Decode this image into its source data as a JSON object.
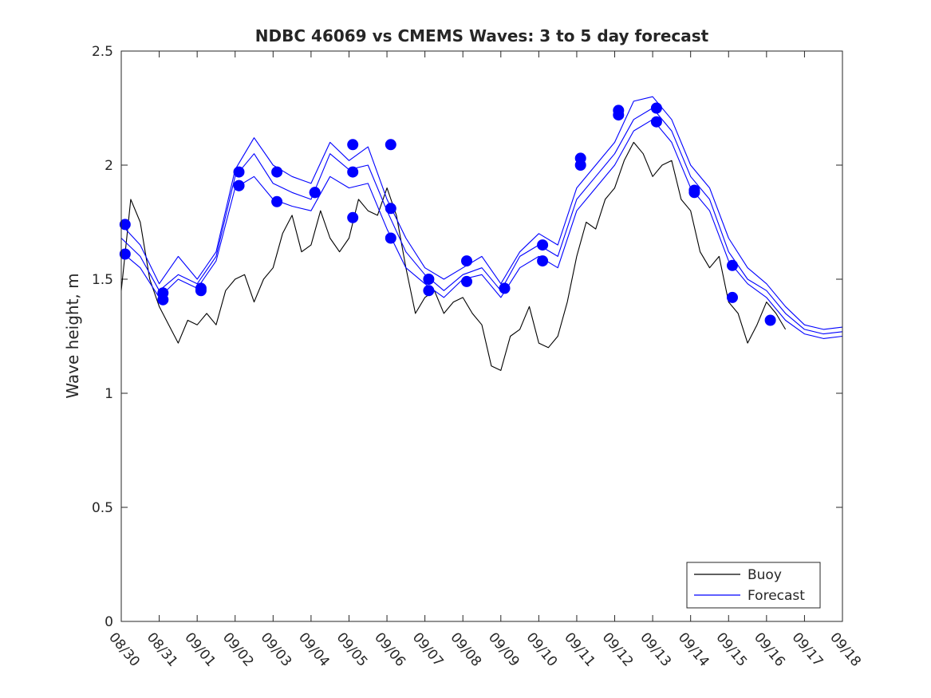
{
  "chart_data": {
    "type": "line",
    "title": "NDBC 46069 vs CMEMS Waves: 3 to 5 day forecast",
    "xlabel": "",
    "ylabel": "Wave height, m",
    "xlim": [
      0,
      19
    ],
    "ylim": [
      0,
      2.5
    ],
    "x_tick_values": [
      0,
      1,
      2,
      3,
      4,
      5,
      6,
      7,
      8,
      9,
      10,
      11,
      12,
      13,
      14,
      15,
      16,
      17,
      18,
      19
    ],
    "x_tick_labels": [
      "08/30",
      "08/31",
      "09/01",
      "09/02",
      "09/03",
      "09/04",
      "09/05",
      "09/06",
      "09/07",
      "09/08",
      "09/09",
      "09/10",
      "09/11",
      "09/12",
      "09/13",
      "09/14",
      "09/15",
      "09/16",
      "09/17",
      "09/18"
    ],
    "y_ticks": [
      0,
      0.5,
      1,
      1.5,
      2,
      2.5
    ],
    "y_tick_labels": [
      "0",
      "0.5",
      "1",
      "1.5",
      "2",
      "2.5"
    ],
    "legend": {
      "position": "bottom-right",
      "entries": [
        "Buoy",
        "Forecast"
      ]
    },
    "colors": {
      "buoy": "#000000",
      "forecast": "#0000ff"
    },
    "series": [
      {
        "name": "Buoy",
        "x": [
          0,
          0.25,
          0.5,
          0.75,
          1,
          1.25,
          1.5,
          1.75,
          2,
          2.25,
          2.5,
          2.75,
          3,
          3.25,
          3.5,
          3.75,
          4,
          4.25,
          4.5,
          4.75,
          5,
          5.25,
          5.5,
          5.75,
          6,
          6.25,
          6.5,
          6.75,
          7,
          7.25,
          7.5,
          7.75,
          8,
          8.25,
          8.5,
          8.75,
          9,
          9.25,
          9.5,
          9.75,
          10,
          10.25,
          10.5,
          10.75,
          11,
          11.25,
          11.5,
          11.75,
          12,
          12.25,
          12.5,
          12.75,
          13,
          13.25,
          13.5,
          13.75,
          14,
          14.25,
          14.5,
          14.75,
          15,
          15.25,
          15.5,
          15.75,
          16,
          16.25,
          16.5,
          16.75,
          17,
          17.25,
          17.5
        ],
        "values": [
          1.45,
          1.85,
          1.75,
          1.5,
          1.38,
          1.3,
          1.22,
          1.32,
          1.3,
          1.35,
          1.3,
          1.45,
          1.5,
          1.52,
          1.4,
          1.5,
          1.55,
          1.7,
          1.78,
          1.62,
          1.65,
          1.8,
          1.68,
          1.62,
          1.68,
          1.85,
          1.8,
          1.78,
          1.9,
          1.78,
          1.55,
          1.35,
          1.42,
          1.45,
          1.35,
          1.4,
          1.42,
          1.35,
          1.3,
          1.12,
          1.1,
          1.25,
          1.28,
          1.38,
          1.22,
          1.2,
          1.25,
          1.4,
          1.6,
          1.75,
          1.72,
          1.85,
          1.9,
          2.02,
          2.1,
          2.05,
          1.95,
          2.0,
          2.02,
          1.85,
          1.8,
          1.62,
          1.55,
          1.6,
          1.4,
          1.35,
          1.22,
          1.3,
          1.4,
          1.35,
          1.28
        ]
      },
      {
        "name": "Forecast",
        "x": [
          0,
          0.5,
          1,
          1.5,
          2,
          2.5,
          3,
          3.5,
          4,
          4.5,
          5,
          5.5,
          6,
          6.5,
          7,
          7.5,
          8,
          8.5,
          9,
          9.5,
          10,
          10.5,
          11,
          11.5,
          12,
          12.5,
          13,
          13.5,
          14,
          14.5,
          15,
          15.5,
          16,
          16.5,
          17,
          17.5,
          18,
          18.5,
          19
        ],
        "values": [
          1.68,
          1.6,
          1.45,
          1.52,
          1.48,
          1.6,
          1.95,
          2.05,
          1.92,
          1.88,
          1.85,
          2.05,
          1.98,
          2.0,
          1.8,
          1.62,
          1.52,
          1.45,
          1.52,
          1.55,
          1.45,
          1.6,
          1.65,
          1.6,
          1.85,
          1.95,
          2.05,
          2.2,
          2.25,
          2.15,
          1.95,
          1.85,
          1.62,
          1.5,
          1.45,
          1.35,
          1.28,
          1.26,
          1.27
        ]
      },
      {
        "name": "Forecast",
        "x": [
          0,
          0.5,
          1,
          1.5,
          2,
          2.5,
          3,
          3.5,
          4,
          4.5,
          5,
          5.5,
          6,
          6.5,
          7,
          7.5,
          8,
          8.5,
          9,
          9.5,
          10,
          10.5,
          11,
          11.5,
          12,
          12.5,
          13,
          13.5,
          14,
          14.5,
          15,
          15.5,
          16,
          16.5,
          17,
          17.5,
          18,
          18.5,
          19
        ],
        "values": [
          1.62,
          1.55,
          1.42,
          1.5,
          1.46,
          1.58,
          1.9,
          1.95,
          1.85,
          1.82,
          1.8,
          1.95,
          1.9,
          1.92,
          1.72,
          1.55,
          1.48,
          1.42,
          1.5,
          1.52,
          1.42,
          1.55,
          1.6,
          1.55,
          1.8,
          1.9,
          2.0,
          2.15,
          2.2,
          2.1,
          1.9,
          1.8,
          1.58,
          1.48,
          1.42,
          1.32,
          1.26,
          1.24,
          1.25
        ]
      },
      {
        "name": "Forecast",
        "x": [
          0,
          0.5,
          1,
          1.5,
          2,
          2.5,
          3,
          3.5,
          4,
          4.5,
          5,
          5.5,
          6,
          6.5,
          7,
          7.5,
          8,
          8.5,
          9,
          9.5,
          10,
          10.5,
          11,
          11.5,
          12,
          12.5,
          13,
          13.5,
          14,
          14.5,
          15,
          15.5,
          16,
          16.5,
          17,
          17.5,
          18,
          18.5,
          19
        ],
        "values": [
          1.74,
          1.65,
          1.48,
          1.6,
          1.5,
          1.62,
          1.98,
          2.12,
          2.0,
          1.95,
          1.92,
          2.1,
          2.02,
          2.08,
          1.85,
          1.68,
          1.55,
          1.5,
          1.55,
          1.6,
          1.48,
          1.62,
          1.7,
          1.65,
          1.9,
          2.0,
          2.1,
          2.28,
          2.3,
          2.2,
          2.0,
          1.9,
          1.68,
          1.55,
          1.48,
          1.38,
          1.3,
          1.28,
          1.29
        ]
      }
    ],
    "markers": {
      "name": "Forecast",
      "x": [
        0.1,
        0.1,
        1.1,
        1.1,
        2.1,
        2.1,
        3.1,
        3.1,
        3.1,
        4.1,
        4.1,
        5.1,
        5.1,
        6.1,
        6.1,
        6.1,
        7.1,
        7.1,
        7.1,
        8.1,
        8.1,
        9.1,
        9.1,
        10.1,
        11.1,
        11.1,
        12.1,
        12.1,
        13.1,
        13.1,
        14.1,
        14.1,
        15.1,
        15.1,
        16.1,
        16.1,
        17.1
      ],
      "values": [
        1.74,
        1.61,
        1.44,
        1.41,
        1.46,
        1.45,
        1.97,
        1.91,
        1.91,
        1.97,
        1.84,
        1.88,
        1.88,
        2.09,
        1.97,
        1.77,
        2.09,
        1.81,
        1.68,
        1.5,
        1.45,
        1.58,
        1.49,
        1.46,
        1.65,
        1.58,
        2.03,
        2.0,
        2.24,
        2.22,
        2.25,
        2.19,
        1.89,
        1.88,
        1.56,
        1.42,
        1.32
      ]
    }
  }
}
